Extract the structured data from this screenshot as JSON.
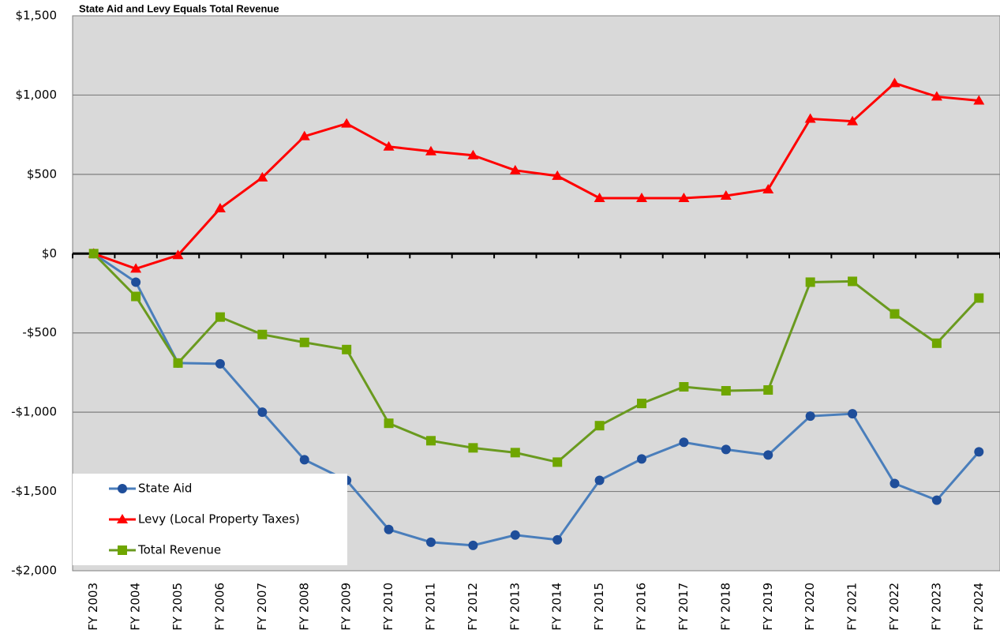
{
  "chart_data": {
    "type": "line",
    "title": "State Aid and Levy Equals Total Revenue",
    "categories": [
      "FY 2003",
      "FY 2004",
      "FY 2005",
      "FY 2006",
      "FY 2007",
      "FY 2008",
      "FY 2009",
      "FY 2010",
      "FY 2011",
      "FY 2012",
      "FY 2013",
      "FY 2014",
      "FY 2015",
      "FY 2016",
      "FY 2017",
      "FY 2018",
      "FY 2019",
      "FY 2020",
      "FY 2021",
      "FY 2022",
      "FY 2023",
      "FY 2024"
    ],
    "series": [
      {
        "name": "State Aid",
        "color": "#4a7ebb",
        "marker": "circle",
        "values": [
          0,
          -180,
          -690,
          -695,
          -1000,
          -1300,
          -1430,
          -1740,
          -1820,
          -1840,
          -1775,
          -1805,
          -1430,
          -1295,
          -1190,
          -1235,
          -1270,
          -1025,
          -1010,
          -1450,
          -1555,
          -1250
        ]
      },
      {
        "name": "Levy (Local Property Taxes)",
        "color": "#ff0000",
        "marker": "triangle",
        "values": [
          0,
          -95,
          -10,
          285,
          480,
          740,
          820,
          675,
          645,
          620,
          525,
          490,
          350,
          350,
          350,
          365,
          405,
          850,
          835,
          1075,
          990,
          965
        ]
      },
      {
        "name": "Total Revenue",
        "color": "#6a9a1f",
        "marker": "square",
        "values": [
          0,
          -270,
          -690,
          -400,
          -510,
          -560,
          -605,
          -1070,
          -1180,
          -1225,
          -1255,
          -1315,
          -1085,
          -945,
          -840,
          -865,
          -860,
          -180,
          -175,
          -380,
          -565,
          -280
        ]
      }
    ],
    "ylim": [
      -2000,
      1500
    ],
    "yticks": [
      {
        "value": -2000,
        "label": "-$2,000"
      },
      {
        "value": -1500,
        "label": "-$1,500"
      },
      {
        "value": -1000,
        "label": "-$1,000"
      },
      {
        "value": -500,
        "label": "-$500"
      },
      {
        "value": 0,
        "label": "$0"
      },
      {
        "value": 500,
        "label": "$500"
      },
      {
        "value": 1000,
        "label": "$1,000"
      },
      {
        "value": 1500,
        "label": "$1,500"
      }
    ],
    "grid": true,
    "legend": "lower left"
  }
}
